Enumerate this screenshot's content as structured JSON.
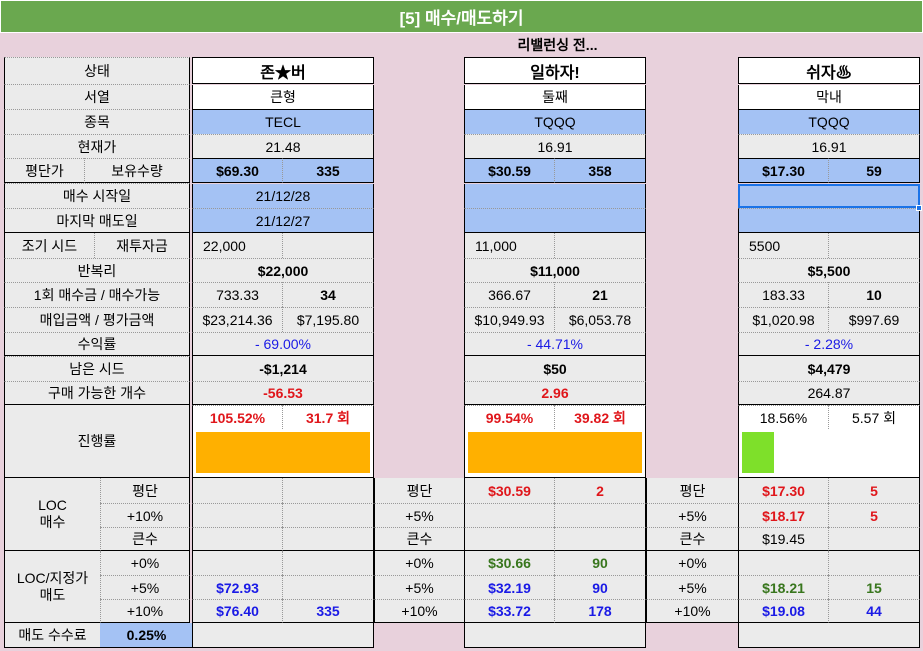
{
  "title": "[5] 매수/매도하기",
  "subtitle": "리밸런싱 전...",
  "labels": {
    "status": "상태",
    "order": "서열",
    "ticker": "종목",
    "current_price": "현재가",
    "avg_price": "평단가",
    "holding_qty": "보유수량",
    "buy_start": "매수 시작일",
    "last_sell": "마지막 매도일",
    "initial_seed": "조기 시드",
    "reinvest": "재투자금",
    "compound": "반복리",
    "per_buy": "1회 매수금 / 매수가능",
    "buy_eval": "매입금액 / 평가금액",
    "return": "수익률",
    "remaining_seed": "남은 시드",
    "buyable_count": "구매 가능한 개수",
    "progress": "진행률",
    "loc_buy": "LOC\n매수",
    "loc_sell": "LOC/지정가\n매도",
    "avg": "평단",
    "big_buy": "큰수",
    "p10": "+10%",
    "p5": "+5%",
    "p0": "+0%",
    "sell_fee": "매도 수수료",
    "sell_fee_value": "0.25%"
  },
  "accounts": [
    {
      "name": "존★버",
      "order": "큰형",
      "ticker": "TECL",
      "current_price": "21.48",
      "avg_price": "$69.30",
      "holding_qty": "335",
      "buy_start": "21/12/28",
      "last_sell": "21/12/27",
      "initial_seed": "22,000",
      "compound": "$22,000",
      "per_buy": "733.33",
      "buy_possible": "34",
      "buy_amount": "$23,214.36",
      "eval_amount": "$7,195.80",
      "return": "- 69.00%",
      "remaining_seed": "-$1,214",
      "buyable_count": "-56.53",
      "progress_pct": "105.52%",
      "progress_turns": "31.7 회",
      "progress_fill": 1.0,
      "bar_color": "#ffb000",
      "loc_buy": {
        "avg_label": "",
        "avg_price": "",
        "avg_qty": "",
        "p_label": "",
        "p_price": "",
        "p_qty": "",
        "big_label": "",
        "big_price": ""
      },
      "loc_sell": {
        "p0_label": "",
        "p0_price": "",
        "p0_qty": "",
        "p5_label": "+5%",
        "p5_price": "$72.93",
        "p5_qty": "",
        "p10_label": "+10%",
        "p10_price": "$76.40",
        "p10_qty": "335"
      }
    },
    {
      "name": "일하자!",
      "order": "둘째",
      "ticker": "TQQQ",
      "current_price": "16.91",
      "avg_price": "$30.59",
      "holding_qty": "358",
      "buy_start": "",
      "last_sell": "",
      "initial_seed": "11,000",
      "compound": "$11,000",
      "per_buy": "366.67",
      "buy_possible": "21",
      "buy_amount": "$10,949.93",
      "eval_amount": "$6,053.78",
      "return": "- 44.71%",
      "remaining_seed": "$50",
      "buyable_count": "2.96",
      "progress_pct": "99.54%",
      "progress_turns": "39.82 회",
      "progress_fill": 1.0,
      "bar_color": "#ffb000",
      "loc_buy": {
        "avg_label": "평단",
        "avg_price": "$30.59",
        "avg_qty": "2",
        "p_label": "+5%",
        "p_price": "",
        "p_qty": "",
        "big_label": "큰수",
        "big_price": ""
      },
      "loc_sell": {
        "p0_label": "+0%",
        "p0_price": "$30.66",
        "p0_qty": "90",
        "p5_label": "+5%",
        "p5_price": "$32.19",
        "p5_qty": "90",
        "p10_label": "+10%",
        "p10_price": "$33.72",
        "p10_qty": "178"
      }
    },
    {
      "name": "쉬자♨",
      "order": "막내",
      "ticker": "TQQQ",
      "current_price": "16.91",
      "avg_price": "$17.30",
      "holding_qty": "59",
      "buy_start": "",
      "last_sell": "",
      "initial_seed": "5500",
      "compound": "$5,500",
      "per_buy": "183.33",
      "buy_possible": "10",
      "buy_amount": "$1,020.98",
      "eval_amount": "$997.69",
      "return": "- 2.28%",
      "remaining_seed": "$4,479",
      "buyable_count": "264.87",
      "progress_pct": "18.56%",
      "progress_turns": "5.57 회",
      "progress_fill": 0.186,
      "bar_color": "#7ee02a",
      "loc_buy": {
        "avg_label": "평단",
        "avg_price": "$17.30",
        "avg_qty": "5",
        "p_label": "+5%",
        "p_price": "$18.17",
        "p_qty": "5",
        "big_label": "큰수",
        "big_price": "$19.45"
      },
      "loc_sell": {
        "p0_label": "+0%",
        "p0_price": "",
        "p0_qty": "",
        "p5_label": "+5%",
        "p5_price": "$18.21",
        "p5_qty": "15",
        "p10_label": "+10%",
        "p10_price": "$19.08",
        "p10_qty": "44"
      }
    }
  ]
}
